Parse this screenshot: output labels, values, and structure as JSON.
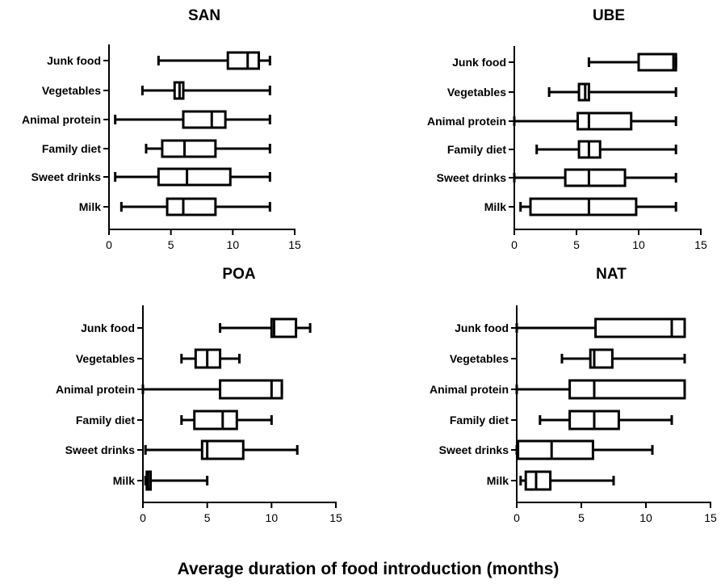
{
  "global": {
    "xlabel": "Average duration of food introduction (months)"
  },
  "chart_data": [
    {
      "type": "boxplot",
      "title": "SAN",
      "orientation": "horizontal",
      "xlim": [
        0,
        15
      ],
      "xticks": [
        "0",
        "5",
        "10",
        "15"
      ],
      "categories": [
        "Junk food",
        "Vegetables",
        "Animal protein",
        "Family diet",
        "Sweet drinks",
        "Milk"
      ],
      "boxes": [
        {
          "min": 4,
          "q1": 9.6,
          "median": 11.2,
          "q3": 12.1,
          "max": 13
        },
        {
          "min": 2.7,
          "q1": 5.3,
          "median": 5.7,
          "q3": 6,
          "max": 13
        },
        {
          "min": 0.5,
          "q1": 6,
          "median": 8.3,
          "q3": 9.4,
          "max": 13
        },
        {
          "min": 3,
          "q1": 4.3,
          "median": 6.1,
          "q3": 8.6,
          "max": 13
        },
        {
          "min": 0.5,
          "q1": 4,
          "median": 6.3,
          "q3": 9.8,
          "max": 13
        },
        {
          "min": 1,
          "q1": 4.7,
          "median": 6,
          "q3": 8.6,
          "max": 13
        }
      ]
    },
    {
      "type": "boxplot",
      "title": "UBE",
      "orientation": "horizontal",
      "xlim": [
        0,
        15
      ],
      "xticks": [
        "0",
        "5",
        "10",
        "15"
      ],
      "categories": [
        "Junk food",
        "Vegetables",
        "Animal protein",
        "Family diet",
        "Sweet drinks",
        "Milk"
      ],
      "boxes": [
        {
          "min": 6,
          "q1": 10,
          "median": 12.8,
          "q3": 13,
          "max": 13
        },
        {
          "min": 2.8,
          "q1": 5.2,
          "median": 5.7,
          "q3": 6,
          "max": 13
        },
        {
          "min": 0,
          "q1": 5.1,
          "median": 6,
          "q3": 9.4,
          "max": 13
        },
        {
          "min": 1.8,
          "q1": 5.2,
          "median": 6,
          "q3": 6.9,
          "max": 13
        },
        {
          "min": 0,
          "q1": 4.1,
          "median": 6,
          "q3": 8.9,
          "max": 13
        },
        {
          "min": 0.5,
          "q1": 1.3,
          "median": 6,
          "q3": 9.8,
          "max": 13
        }
      ]
    },
    {
      "type": "boxplot",
      "title": "POA",
      "orientation": "horizontal",
      "xlim": [
        0,
        15
      ],
      "xticks": [
        "0",
        "5",
        "10",
        "15"
      ],
      "categories": [
        "Junk food",
        "Vegetables",
        "Animal protein",
        "Family diet",
        "Sweet drinks",
        "Milk"
      ],
      "boxes": [
        {
          "min": 6,
          "q1": 10,
          "median": 10.2,
          "q3": 11.9,
          "max": 13
        },
        {
          "min": 3,
          "q1": 4.1,
          "median": 5,
          "q3": 6,
          "max": 7.5
        },
        {
          "min": 0,
          "q1": 6,
          "median": 10,
          "q3": 10.8,
          "max": 10.8
        },
        {
          "min": 3,
          "q1": 4,
          "median": 6.2,
          "q3": 7.3,
          "max": 10
        },
        {
          "min": 0.2,
          "q1": 4.6,
          "median": 5,
          "q3": 7.8,
          "max": 12
        },
        {
          "min": 0.2,
          "q1": 0.3,
          "median": 0.4,
          "q3": 0.6,
          "max": 5
        }
      ]
    },
    {
      "type": "boxplot",
      "title": "NAT",
      "orientation": "horizontal",
      "xlim": [
        0,
        15
      ],
      "xticks": [
        "0",
        "5",
        "10",
        "15"
      ],
      "categories": [
        "Junk food",
        "Vegetables",
        "Animal protein",
        "Family diet",
        "Sweet drinks",
        "Milk"
      ],
      "boxes": [
        {
          "min": 0,
          "q1": 6.1,
          "median": 12,
          "q3": 13,
          "max": 13
        },
        {
          "min": 3.5,
          "q1": 5.7,
          "median": 6,
          "q3": 7.4,
          "max": 13
        },
        {
          "min": 0,
          "q1": 4.1,
          "median": 6,
          "q3": 13,
          "max": 13
        },
        {
          "min": 1.8,
          "q1": 4.1,
          "median": 6,
          "q3": 7.9,
          "max": 12
        },
        {
          "min": 0,
          "q1": 0.1,
          "median": 2.7,
          "q3": 5.9,
          "max": 10.5
        },
        {
          "min": 0.3,
          "q1": 0.7,
          "median": 1.5,
          "q3": 2.6,
          "max": 7.5
        }
      ]
    }
  ]
}
